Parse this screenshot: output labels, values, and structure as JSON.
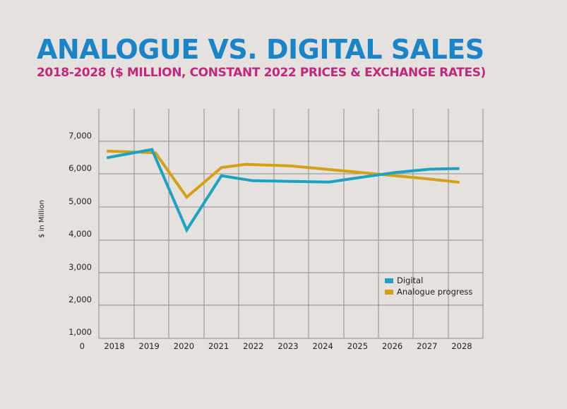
{
  "title": "ANALOGUE VS. DIGITAL SALES",
  "subtitle": "2018-2028 ($ MILLION, CONSTANT 2022 PRICES & EXCHANGE RATES)",
  "colors": {
    "title": "#1a84c8",
    "subtitle": "#c0287e",
    "digital": "#1ba3bf",
    "analogue": "#d4a015",
    "grid": "#8f8f8f",
    "background": "#e4e1de"
  },
  "chart_data": {
    "type": "line",
    "title": "ANALOGUE VS. DIGITAL SALES",
    "subtitle": "2018-2028 ($ MILLION, CONSTANT 2022 PRICES & EXCHANGE RATES)",
    "xlabel": "",
    "ylabel": "$ in Million",
    "x_ticks": [
      "2018",
      "2019",
      "2020",
      "2021",
      "2022",
      "2023",
      "2024",
      "2025",
      "2026",
      "2027",
      "2028"
    ],
    "y_ticks": [
      "0",
      "1,000",
      "2,000",
      "3,000",
      "4,000",
      "5,000",
      "6,000",
      "7,000"
    ],
    "ylim": [
      0,
      7500
    ],
    "grid": true,
    "legend_position": "bottom-right",
    "series": [
      {
        "name": "Digital",
        "color": "#1ba3bf",
        "points": [
          [
            2017.7,
            6500
          ],
          [
            2019.0,
            6750
          ],
          [
            2020.0,
            4300
          ],
          [
            2021.0,
            5950
          ],
          [
            2021.9,
            5800
          ],
          [
            2023.0,
            5780
          ],
          [
            2024.1,
            5760
          ],
          [
            2025.0,
            5900
          ],
          [
            2026.0,
            6050
          ],
          [
            2027.0,
            6150
          ],
          [
            2027.85,
            6170
          ]
        ]
      },
      {
        "name": "Analogue progress",
        "color": "#d4a015",
        "points": [
          [
            2017.7,
            6700
          ],
          [
            2019.1,
            6650
          ],
          [
            2020.0,
            5300
          ],
          [
            2021.0,
            6200
          ],
          [
            2021.7,
            6300
          ],
          [
            2023.0,
            6250
          ],
          [
            2024.0,
            6150
          ],
          [
            2025.0,
            6050
          ],
          [
            2026.0,
            5950
          ],
          [
            2027.0,
            5850
          ],
          [
            2027.85,
            5750
          ]
        ]
      }
    ]
  }
}
